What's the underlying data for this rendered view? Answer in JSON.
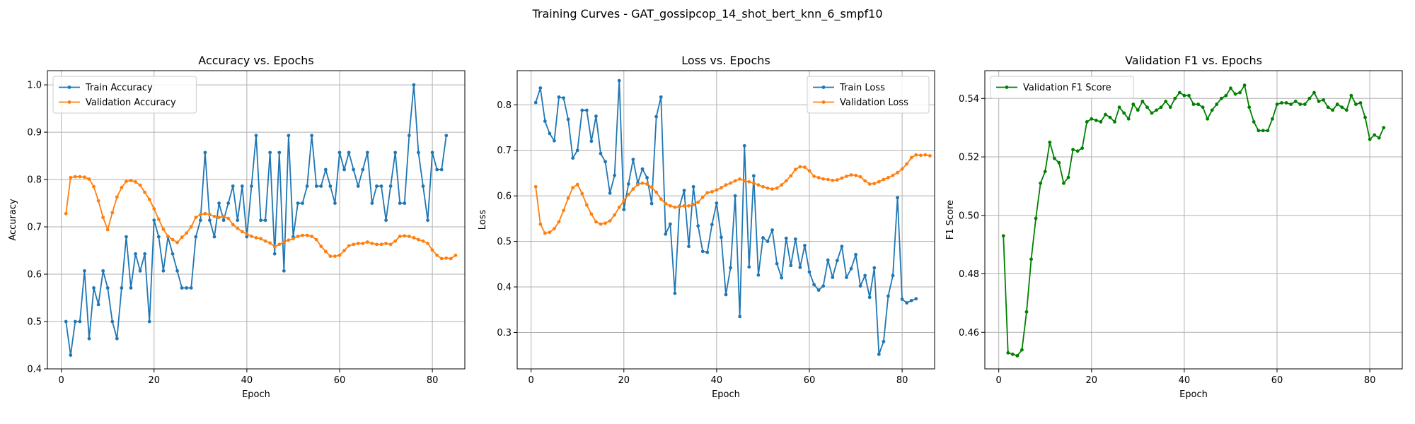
{
  "figure": {
    "suptitle": "Training Curves - GAT_gossipcop_14_shot_bert_knn_6_smpf10"
  },
  "colors": {
    "blue": "#1f77b4",
    "orange": "#ff7f0e",
    "green": "#008000",
    "grid": "#b0b0b0"
  },
  "chart_data": [
    {
      "type": "line",
      "title": "Accuracy vs. Epochs",
      "xlabel": "Epoch",
      "ylabel": "Accuracy",
      "xlim": [
        -3,
        87
      ],
      "ylim": [
        0.4,
        1.03
      ],
      "xticks": [
        0,
        20,
        40,
        60,
        80
      ],
      "yticks": [
        0.4,
        0.5,
        0.6,
        0.7,
        0.8,
        0.9,
        1.0
      ],
      "ytick_labels": [
        "0.4",
        "0.5",
        "0.6",
        "0.7",
        "0.8",
        "0.9",
        "1.0"
      ],
      "grid": true,
      "legend_position": "upper-left",
      "x_start": 1,
      "series": [
        {
          "name": "Train Accuracy",
          "color": "#1f77b4",
          "values": [
            0.5,
            0.429,
            0.5,
            0.5,
            0.607,
            0.464,
            0.571,
            0.536,
            0.607,
            0.571,
            0.5,
            0.464,
            0.571,
            0.679,
            0.571,
            0.643,
            0.607,
            0.643,
            0.5,
            0.714,
            0.679,
            0.607,
            0.679,
            0.643,
            0.607,
            0.571,
            0.571,
            0.571,
            0.679,
            0.714,
            0.857,
            0.714,
            0.679,
            0.75,
            0.714,
            0.75,
            0.786,
            0.714,
            0.786,
            0.679,
            0.786,
            0.893,
            0.714,
            0.714,
            0.857,
            0.643,
            0.857,
            0.607,
            0.893,
            0.679,
            0.75,
            0.75,
            0.786,
            0.893,
            0.786,
            0.786,
            0.821,
            0.786,
            0.75,
            0.857,
            0.821,
            0.857,
            0.821,
            0.786,
            0.821,
            0.857,
            0.75,
            0.786,
            0.786,
            0.714,
            0.786,
            0.857,
            0.75,
            0.75,
            0.893,
            1.0,
            0.857,
            0.786,
            0.714,
            0.857,
            0.821,
            0.821,
            0.893
          ]
        },
        {
          "name": "Validation Accuracy",
          "color": "#ff7f0e",
          "values": [
            0.728,
            0.804,
            0.806,
            0.806,
            0.805,
            0.801,
            0.785,
            0.755,
            0.72,
            0.694,
            0.73,
            0.763,
            0.783,
            0.796,
            0.798,
            0.795,
            0.788,
            0.773,
            0.758,
            0.738,
            0.716,
            0.695,
            0.68,
            0.673,
            0.667,
            0.678,
            0.687,
            0.7,
            0.72,
            0.726,
            0.728,
            0.726,
            0.722,
            0.72,
            0.722,
            0.718,
            0.705,
            0.697,
            0.69,
            0.685,
            0.68,
            0.677,
            0.675,
            0.67,
            0.666,
            0.658,
            0.663,
            0.668,
            0.672,
            0.675,
            0.68,
            0.682,
            0.682,
            0.68,
            0.673,
            0.659,
            0.648,
            0.638,
            0.638,
            0.64,
            0.65,
            0.66,
            0.663,
            0.665,
            0.665,
            0.668,
            0.665,
            0.663,
            0.663,
            0.665,
            0.663,
            0.67,
            0.68,
            0.681,
            0.68,
            0.677,
            0.673,
            0.67,
            0.665,
            0.651,
            0.64,
            0.633,
            0.634,
            0.633,
            0.64
          ]
        }
      ]
    },
    {
      "type": "line",
      "title": "Loss vs. Epochs",
      "xlabel": "Epoch",
      "ylabel": "Loss",
      "xlim": [
        -3,
        87
      ],
      "ylim": [
        0.22,
        0.875
      ],
      "xticks": [
        0,
        20,
        40,
        60,
        80
      ],
      "yticks": [
        0.3,
        0.4,
        0.5,
        0.6,
        0.7,
        0.8
      ],
      "ytick_labels": [
        "0.3",
        "0.4",
        "0.5",
        "0.6",
        "0.7",
        "0.8"
      ],
      "grid": true,
      "legend_position": "upper-right",
      "x_start": 1,
      "series": [
        {
          "name": "Train Loss",
          "color": "#1f77b4",
          "values": [
            0.805,
            0.837,
            0.764,
            0.737,
            0.721,
            0.817,
            0.815,
            0.768,
            0.683,
            0.7,
            0.788,
            0.788,
            0.72,
            0.775,
            0.693,
            0.675,
            0.606,
            0.645,
            0.853,
            0.57,
            0.626,
            0.68,
            0.628,
            0.659,
            0.64,
            0.583,
            0.774,
            0.817,
            0.516,
            0.538,
            0.386,
            0.577,
            0.612,
            0.489,
            0.62,
            0.534,
            0.478,
            0.476,
            0.537,
            0.584,
            0.509,
            0.383,
            0.442,
            0.6,
            0.335,
            0.71,
            0.444,
            0.644,
            0.426,
            0.508,
            0.5,
            0.525,
            0.451,
            0.42,
            0.507,
            0.447,
            0.505,
            0.443,
            0.491,
            0.433,
            0.405,
            0.393,
            0.402,
            0.459,
            0.421,
            0.458,
            0.489,
            0.421,
            0.44,
            0.471,
            0.402,
            0.425,
            0.377,
            0.442,
            0.252,
            0.28,
            0.38,
            0.425,
            0.596,
            0.373,
            0.365,
            0.37,
            0.374
          ]
        },
        {
          "name": "Validation Loss",
          "color": "#ff7f0e",
          "values": [
            0.62,
            0.538,
            0.518,
            0.52,
            0.528,
            0.543,
            0.568,
            0.595,
            0.618,
            0.625,
            0.605,
            0.58,
            0.56,
            0.543,
            0.538,
            0.54,
            0.545,
            0.558,
            0.575,
            0.589,
            0.603,
            0.615,
            0.625,
            0.628,
            0.626,
            0.619,
            0.608,
            0.593,
            0.583,
            0.578,
            0.575,
            0.576,
            0.578,
            0.578,
            0.581,
            0.586,
            0.597,
            0.607,
            0.609,
            0.613,
            0.618,
            0.624,
            0.628,
            0.633,
            0.637,
            0.633,
            0.631,
            0.628,
            0.624,
            0.62,
            0.617,
            0.615,
            0.617,
            0.624,
            0.633,
            0.644,
            0.658,
            0.664,
            0.663,
            0.655,
            0.643,
            0.64,
            0.637,
            0.636,
            0.634,
            0.635,
            0.639,
            0.643,
            0.646,
            0.645,
            0.642,
            0.633,
            0.626,
            0.627,
            0.631,
            0.636,
            0.64,
            0.645,
            0.651,
            0.659,
            0.67,
            0.684,
            0.69,
            0.689,
            0.69,
            0.688
          ]
        }
      ]
    },
    {
      "type": "line",
      "title": "Validation F1 vs. Epochs",
      "xlabel": "Epoch",
      "ylabel": "F1 Score",
      "xlim": [
        -3,
        87
      ],
      "ylim": [
        0.4475,
        0.5495
      ],
      "xticks": [
        0,
        20,
        40,
        60,
        80
      ],
      "yticks": [
        0.46,
        0.48,
        0.5,
        0.52,
        0.54
      ],
      "ytick_labels": [
        "0.46",
        "0.48",
        "0.50",
        "0.52",
        "0.54"
      ],
      "grid": true,
      "legend_position": "upper-left",
      "x_start": 1,
      "series": [
        {
          "name": "Validation F1 Score",
          "color": "#008000",
          "values": [
            0.493,
            0.453,
            0.4525,
            0.452,
            0.454,
            0.467,
            0.485,
            0.499,
            0.511,
            0.515,
            0.525,
            0.5195,
            0.518,
            0.511,
            0.513,
            0.5225,
            0.522,
            0.523,
            0.532,
            0.533,
            0.5325,
            0.532,
            0.5345,
            0.5335,
            0.532,
            0.537,
            0.535,
            0.533,
            0.538,
            0.536,
            0.539,
            0.537,
            0.535,
            0.536,
            0.537,
            0.539,
            0.537,
            0.54,
            0.542,
            0.541,
            0.541,
            0.538,
            0.538,
            0.537,
            0.533,
            0.536,
            0.538,
            0.54,
            0.541,
            0.5435,
            0.5415,
            0.542,
            0.5445,
            0.537,
            0.532,
            0.529,
            0.529,
            0.529,
            0.533,
            0.538,
            0.5385,
            0.5385,
            0.538,
            0.539,
            0.538,
            0.538,
            0.54,
            0.542,
            0.539,
            0.5395,
            0.537,
            0.536,
            0.538,
            0.537,
            0.536,
            0.541,
            0.538,
            0.5385,
            0.5335,
            0.526,
            0.5275,
            0.5265,
            0.53
          ]
        }
      ]
    }
  ]
}
